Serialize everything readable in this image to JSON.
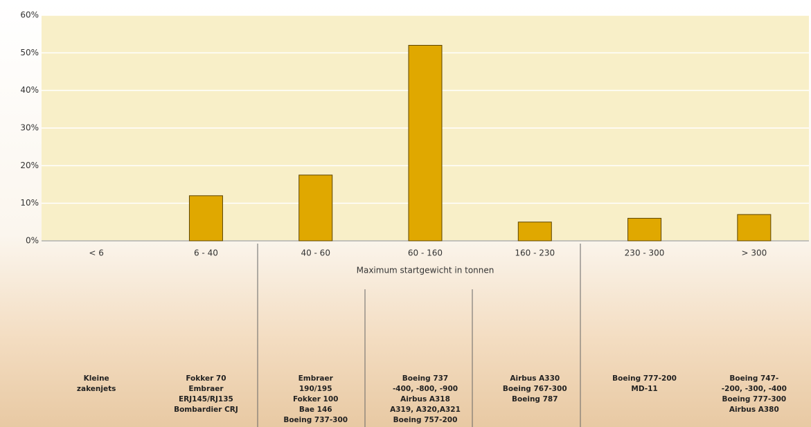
{
  "chart_data": {
    "type": "bar",
    "x_label": "Maximum startgewicht in tonnen",
    "categories": [
      "< 6",
      "6 - 40",
      "40 - 60",
      "60 - 160",
      "160 - 230",
      "230 - 300",
      "> 300"
    ],
    "values": [
      0,
      12,
      17.5,
      52,
      5,
      6,
      7
    ],
    "color": "#e0a800",
    "ylim": [
      0,
      60
    ],
    "yticks": [
      {
        "value": 0,
        "label": "0%"
      },
      {
        "value": 10,
        "label": "10%"
      },
      {
        "value": 20,
        "label": "20%"
      },
      {
        "value": 30,
        "label": "30%"
      },
      {
        "value": 40,
        "label": "40%"
      },
      {
        "value": 50,
        "label": "50%"
      },
      {
        "value": 60,
        "label": "60%"
      }
    ],
    "grid": true,
    "descriptions": [
      [
        "Kleine",
        "zakenjets"
      ],
      [
        "Fokker 70",
        "Embraer",
        "ERJ145/RJ135",
        "Bombardier CRJ"
      ],
      [
        "Embraer",
        "190/195",
        "Fokker 100",
        "Bae 146",
        "Boeing 737-300"
      ],
      [
        "Boeing 737",
        "-400, -800, -900",
        "Airbus A318",
        "A319, A320,A321",
        "Boeing 757-200"
      ],
      [
        "Airbus A330",
        "Boeing 767-300",
        "Boeing 787"
      ],
      [
        "Boeing 777-200",
        "MD-11"
      ],
      [
        "Boeing 747-",
        "-200, -300, -400",
        "Boeing 777-300",
        "Airbus A380"
      ]
    ]
  }
}
